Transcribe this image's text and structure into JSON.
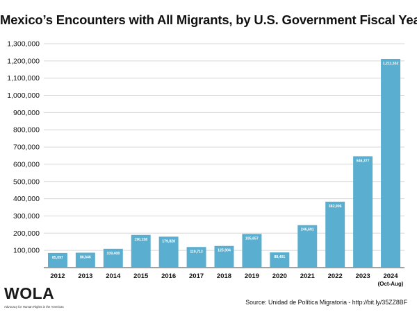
{
  "chart_data": {
    "type": "bar",
    "title": "Mexico’s Encounters with All Migrants, by U.S. Government Fiscal Year",
    "categories": [
      "2012",
      "2013",
      "2014",
      "2015",
      "2016",
      "2017",
      "2018",
      "2019",
      "2020",
      "2021",
      "2022",
      "2023",
      "2024"
    ],
    "category_sublabels": [
      "",
      "",
      "",
      "",
      "",
      "",
      "",
      "",
      "",
      "",
      "",
      "",
      "(Oct-Aug)"
    ],
    "values": [
      85097,
      86646,
      109408,
      190158,
      179828,
      119713,
      125904,
      195657,
      88401,
      246691,
      382906,
      646377,
      1211552
    ],
    "value_labels": [
      "85,097",
      "86,646",
      "109,408",
      "190,158",
      "179,828",
      "119,713",
      "125,904",
      "195,657",
      "88,401",
      "246,691",
      "382,906",
      "646,377",
      "1,211,552"
    ],
    "ylim": [
      0,
      1300000
    ],
    "yticks": [
      100000,
      200000,
      300000,
      400000,
      500000,
      600000,
      700000,
      800000,
      900000,
      1000000,
      1100000,
      1200000,
      1300000
    ],
    "ytick_labels": [
      "100,000",
      "200,000",
      "300,000",
      "400,000",
      "500,000",
      "600,000",
      "700,000",
      "800,000",
      "900,000",
      "1,000,000",
      "1,100,000",
      "1,200,000",
      "1,300,000"
    ],
    "xlabel": "",
    "ylabel": "",
    "grid": true,
    "bar_color": "#5aaecf",
    "grid_color": "#d6d6d6"
  },
  "logo": {
    "word": "WOLA",
    "tagline": "Advocacy for Human Rights in the Americas"
  },
  "source": "Source: Unidad de Política Migratoria - http://bit.ly/35ZZ8BF"
}
